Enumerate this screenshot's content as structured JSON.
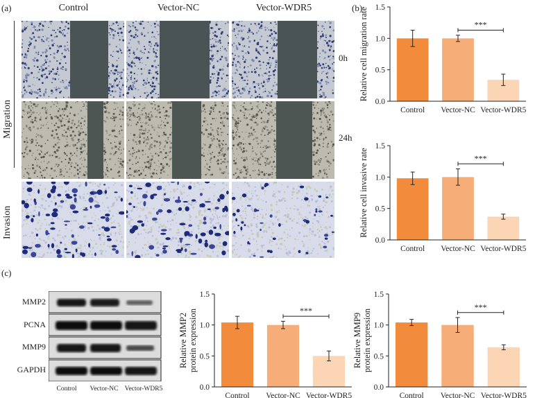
{
  "panels": {
    "a": "(a)",
    "b": "(b)",
    "c": "(c)"
  },
  "micrographs": {
    "columns": [
      "Control",
      "Vector-NC",
      "Vector-WDR5"
    ],
    "rows": {
      "migration": "Migration",
      "invasion": "Invasion"
    },
    "time_labels": [
      "0h",
      "24h"
    ]
  },
  "western": {
    "proteins": [
      "MMP2",
      "PCNA",
      "MMP9",
      "GAPDH"
    ],
    "lanes": [
      "Control",
      "Vector-NC",
      "Vector-WDR5"
    ]
  },
  "chart_data": [
    {
      "id": "migration",
      "type": "bar",
      "categories": [
        "Control",
        "Vector-NC",
        "Vector-WDR5"
      ],
      "values": [
        1.0,
        1.0,
        0.34
      ],
      "errors": [
        0.13,
        0.05,
        0.09
      ],
      "ylabel": [
        "Relative cell migration rate"
      ],
      "ylim": [
        0,
        1.5
      ],
      "yticks": [
        "0.0",
        "0.5",
        "1.0",
        "1.5"
      ],
      "significance": {
        "from": 1,
        "to": 2,
        "label": "***"
      },
      "colors": [
        "#f38b3c",
        "#f7ad78",
        "#fcd5b4"
      ]
    },
    {
      "id": "invasion",
      "type": "bar",
      "categories": [
        "Control",
        "Vector-NC",
        "Vector-WDR5"
      ],
      "values": [
        0.98,
        1.0,
        0.37
      ],
      "errors": [
        0.1,
        0.13,
        0.04
      ],
      "ylabel": [
        "Relative cell invasive rate"
      ],
      "ylim": [
        0,
        1.5
      ],
      "yticks": [
        "0.0",
        "0.5",
        "1.0",
        "1.5"
      ],
      "significance": {
        "from": 1,
        "to": 2,
        "label": "***"
      },
      "colors": [
        "#f38b3c",
        "#f7ad78",
        "#fcd5b4"
      ]
    },
    {
      "id": "mmp2",
      "type": "bar",
      "categories": [
        "Control",
        "Vector-NC",
        "Vector-WDR5"
      ],
      "values": [
        1.04,
        1.0,
        0.5
      ],
      "errors": [
        0.1,
        0.06,
        0.08
      ],
      "ylabel": [
        "Relative MMP2",
        "protein expression"
      ],
      "ylim": [
        0,
        1.5
      ],
      "yticks": [
        "0.0",
        "0.5",
        "1.0",
        "1.5"
      ],
      "significance": {
        "from": 1,
        "to": 2,
        "label": "***"
      },
      "colors": [
        "#f38b3c",
        "#f7ad78",
        "#fcd5b4"
      ]
    },
    {
      "id": "mmp9",
      "type": "bar",
      "categories": [
        "Control",
        "Vector-NC",
        "Vector-WDR5"
      ],
      "values": [
        1.04,
        1.0,
        0.64
      ],
      "errors": [
        0.05,
        0.12,
        0.04
      ],
      "ylabel": [
        "Relative MMP9",
        "protein expression"
      ],
      "ylim": [
        0,
        1.5
      ],
      "yticks": [
        "0.0",
        "0.5",
        "1.0",
        "1.5"
      ],
      "significance": {
        "from": 1,
        "to": 2,
        "label": "***"
      },
      "colors": [
        "#f38b3c",
        "#f7ad78",
        "#fcd5b4"
      ]
    }
  ]
}
